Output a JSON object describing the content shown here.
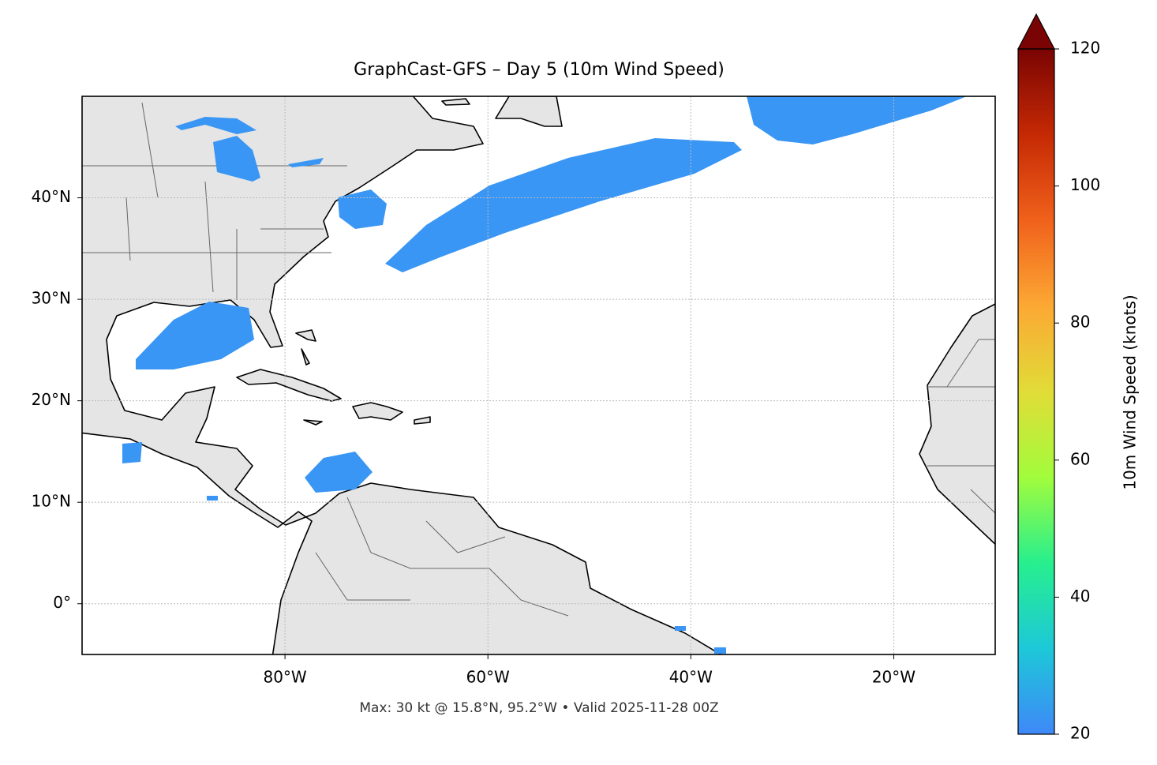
{
  "chart_data": {
    "type": "map",
    "title": "GraphCast-GFS – Day 5 (10m Wind Speed)",
    "xlim": [
      -100,
      -10
    ],
    "xticks": [
      {
        "value": -80,
        "label": "80°W"
      },
      {
        "value": -60,
        "label": "60°W"
      },
      {
        "value": -40,
        "label": "40°W"
      },
      {
        "value": -20,
        "label": "20°W"
      }
    ],
    "ylim": [
      -5,
      50
    ],
    "yticks": [
      {
        "value": 0,
        "label": "0°"
      },
      {
        "value": 10,
        "label": "10°N"
      },
      {
        "value": 20,
        "label": "20°N"
      },
      {
        "value": 30,
        "label": "30°N"
      },
      {
        "value": 40,
        "label": "40°N"
      }
    ],
    "grid": true,
    "footer": "Max: 30 kt @ 15.8°N, 95.2°W • Valid 2025-11-28 00Z",
    "colorbar": {
      "label": "10m Wind Speed (knots)",
      "lim": [
        20,
        120
      ],
      "ticks": [
        20,
        40,
        60,
        80,
        100,
        120
      ],
      "colors": [
        "#3f88f8",
        "#1dc8d8",
        "#27ef8e",
        "#a2fc3c",
        "#e1dc37",
        "#fca834",
        "#f0611b",
        "#c52904",
        "#7a0403"
      ]
    }
  }
}
